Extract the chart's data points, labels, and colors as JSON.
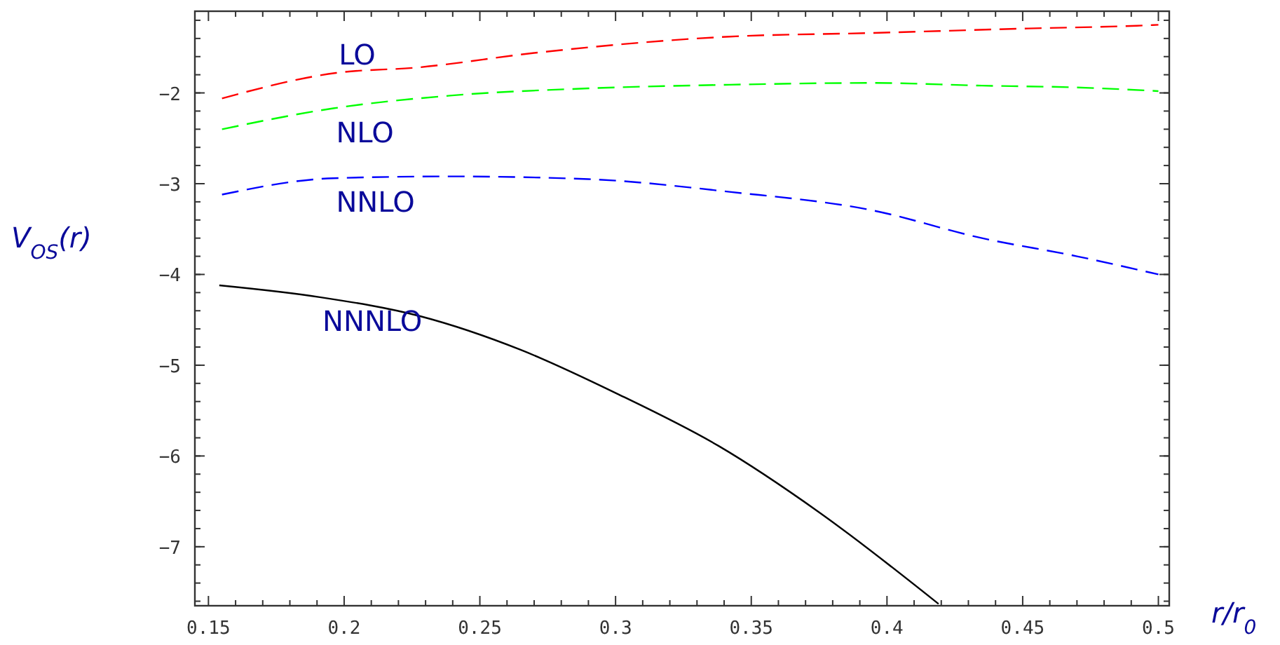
{
  "chart_data": {
    "type": "line",
    "xlabel": "r/r$_{0}$",
    "ylabel": "V$_{OS}$(r)",
    "xlim": [
      0.145,
      0.504
    ],
    "ylim": [
      -7.65,
      -1.1
    ],
    "xticks": [
      0.15,
      0.2,
      0.25,
      0.3,
      0.35,
      0.4,
      0.45,
      0.5
    ],
    "yticks": [
      -7,
      -6,
      -5,
      -4,
      -3,
      -2
    ],
    "grid": false,
    "series": [
      {
        "name": "LO",
        "color": "#ff0000",
        "line_style": "dashed",
        "x": [
          0.155,
          0.197,
          0.227,
          0.27,
          0.342,
          0.394,
          0.452,
          0.492,
          0.5
        ],
        "values": [
          -2.06,
          -1.78,
          -1.72,
          -1.56,
          -1.38,
          -1.34,
          -1.29,
          -1.26,
          -1.25
        ]
      },
      {
        "name": "NLO",
        "color": "#00ff00",
        "line_style": "dashed",
        "x": [
          0.155,
          0.196,
          0.239,
          0.29,
          0.342,
          0.394,
          0.435,
          0.47,
          0.5
        ],
        "values": [
          -2.4,
          -2.17,
          -2.03,
          -1.95,
          -1.91,
          -1.89,
          -1.92,
          -1.94,
          -1.98
        ]
      },
      {
        "name": "NNLO",
        "color": "#0000ff",
        "line_style": "dashed",
        "x": [
          0.155,
          0.196,
          0.239,
          0.29,
          0.342,
          0.394,
          0.435,
          0.47,
          0.5
        ],
        "values": [
          -3.12,
          -2.94,
          -2.92,
          -2.95,
          -3.09,
          -3.29,
          -3.6,
          -3.8,
          -4.0
        ]
      },
      {
        "name": "NNNLO",
        "color": "#000000",
        "line_style": "solid",
        "x": [
          0.154,
          0.191,
          0.228,
          0.265,
          0.301,
          0.338,
          0.375,
          0.419
        ],
        "values": [
          -4.12,
          -4.25,
          -4.46,
          -4.83,
          -5.32,
          -5.89,
          -6.62,
          -7.63
        ]
      }
    ]
  }
}
